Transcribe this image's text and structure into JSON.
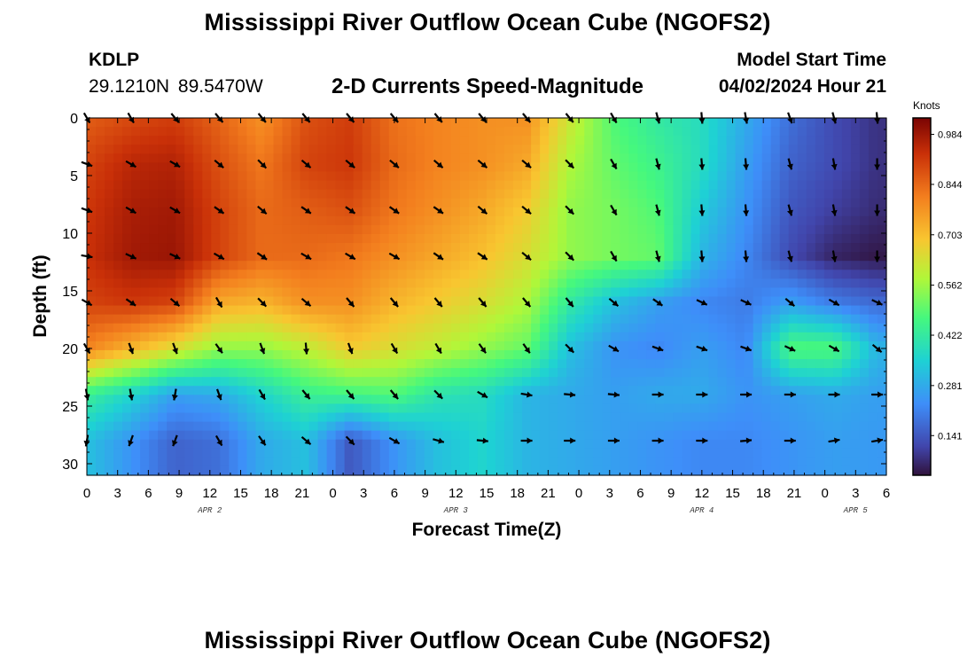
{
  "header": {
    "title": "Mississippi River Outflow Ocean Cube (NGOFS2)",
    "station_id": "KDLP",
    "station_coords": "29.1210N  89.5470W",
    "product": "2-D Currents Speed-Magnitude",
    "model_start_label": "Model Start Time",
    "model_start_value": "04/02/2024 Hour 21"
  },
  "footer": {
    "title": "Mississippi River Outflow Ocean Cube (NGOFS2)"
  },
  "chart_data": {
    "type": "heatmap",
    "title": "2-D Currents Speed-Magnitude",
    "xlabel": "Forecast Time(Z)",
    "ylabel": "Depth (ft)",
    "colorbar_unit": "Knots",
    "colorbar_ticks": [
      "0.984",
      "0.844",
      "0.703",
      "0.562",
      "0.422",
      "0.281",
      "0.141"
    ],
    "colorbar_range": [
      0.03,
      1.03
    ],
    "x_tick_labels": [
      "0",
      "3",
      "6",
      "9",
      "12",
      "15",
      "18",
      "21",
      "0",
      "3",
      "6",
      "9",
      "12",
      "15",
      "18",
      "21",
      "0",
      "3",
      "6",
      "9",
      "12",
      "15",
      "18",
      "21",
      "0",
      "3",
      "6"
    ],
    "x_range": [
      0,
      78
    ],
    "day_labels": [
      {
        "label": "APR 2",
        "hours": 12
      },
      {
        "label": "APR 3",
        "hours": 36
      },
      {
        "label": "APR 4",
        "hours": 60
      },
      {
        "label": "APR 5",
        "hours": 75
      }
    ],
    "y_tick_labels": [
      "0",
      "5",
      "10",
      "15",
      "20",
      "25",
      "30"
    ],
    "y_range": [
      0,
      31
    ],
    "depths": [
      0,
      4,
      8,
      12,
      16,
      20,
      24,
      28
    ],
    "hours": [
      0,
      4.3,
      8.6,
      12.9,
      17.1,
      21.4,
      25.7,
      30,
      34.3,
      38.6,
      42.9,
      47.1,
      51.4,
      55.7,
      60,
      64.3,
      68.6,
      72.9,
      77.1
    ],
    "speed": [
      [
        0.86,
        0.89,
        0.91,
        0.85,
        0.78,
        0.88,
        0.91,
        0.83,
        0.8,
        0.78,
        0.78,
        0.62,
        0.48,
        0.42,
        0.38,
        0.28,
        0.18,
        0.12,
        0.08
      ],
      [
        0.9,
        0.95,
        0.96,
        0.88,
        0.82,
        0.9,
        0.92,
        0.84,
        0.8,
        0.78,
        0.74,
        0.58,
        0.5,
        0.45,
        0.38,
        0.26,
        0.16,
        0.12,
        0.08
      ],
      [
        0.92,
        0.97,
        0.98,
        0.9,
        0.84,
        0.86,
        0.88,
        0.82,
        0.78,
        0.74,
        0.68,
        0.55,
        0.52,
        0.48,
        0.34,
        0.24,
        0.14,
        0.1,
        0.07
      ],
      [
        0.93,
        0.98,
        0.99,
        0.9,
        0.84,
        0.84,
        0.82,
        0.78,
        0.74,
        0.7,
        0.64,
        0.55,
        0.52,
        0.5,
        0.3,
        0.22,
        0.12,
        0.06,
        0.04
      ],
      [
        0.9,
        0.92,
        0.9,
        0.74,
        0.72,
        0.78,
        0.78,
        0.72,
        0.68,
        0.64,
        0.58,
        0.42,
        0.32,
        0.26,
        0.22,
        0.2,
        0.26,
        0.2,
        0.17
      ],
      [
        0.8,
        0.72,
        0.64,
        0.55,
        0.55,
        0.6,
        0.68,
        0.64,
        0.6,
        0.55,
        0.5,
        0.32,
        0.24,
        0.22,
        0.26,
        0.22,
        0.48,
        0.48,
        0.3
      ],
      [
        0.44,
        0.36,
        0.26,
        0.28,
        0.36,
        0.44,
        0.46,
        0.48,
        0.4,
        0.38,
        0.3,
        0.28,
        0.26,
        0.28,
        0.28,
        0.24,
        0.26,
        0.28,
        0.26
      ],
      [
        0.32,
        0.24,
        0.16,
        0.18,
        0.28,
        0.32,
        0.14,
        0.24,
        0.32,
        0.36,
        0.3,
        0.28,
        0.26,
        0.24,
        0.22,
        0.22,
        0.24,
        0.26,
        0.25
      ]
    ],
    "direction_deg": [
      [
        150,
        150,
        140,
        140,
        140,
        140,
        140,
        140,
        140,
        140,
        140,
        140,
        150,
        165,
        175,
        170,
        160,
        165,
        175
      ],
      [
        110,
        120,
        120,
        130,
        135,
        130,
        130,
        130,
        130,
        130,
        130,
        135,
        150,
        165,
        175,
        175,
        165,
        170,
        180
      ],
      [
        110,
        120,
        120,
        125,
        130,
        125,
        125,
        125,
        125,
        130,
        130,
        135,
        150,
        165,
        175,
        175,
        165,
        170,
        180
      ],
      [
        100,
        115,
        115,
        120,
        125,
        120,
        120,
        120,
        125,
        125,
        130,
        135,
        150,
        165,
        175,
        175,
        165,
        170,
        180
      ],
      [
        120,
        125,
        130,
        150,
        135,
        130,
        140,
        140,
        140,
        140,
        140,
        140,
        130,
        125,
        115,
        115,
        130,
        120,
        115
      ],
      [
        150,
        160,
        160,
        145,
        160,
        175,
        160,
        150,
        150,
        145,
        145,
        135,
        120,
        110,
        110,
        110,
        115,
        120,
        130
      ],
      [
        170,
        170,
        190,
        160,
        150,
        140,
        140,
        140,
        135,
        120,
        100,
        95,
        95,
        90,
        90,
        90,
        90,
        90,
        90
      ],
      [
        190,
        200,
        200,
        150,
        145,
        130,
        135,
        120,
        105,
        95,
        90,
        90,
        90,
        90,
        90,
        85,
        90,
        80,
        80
      ]
    ]
  }
}
